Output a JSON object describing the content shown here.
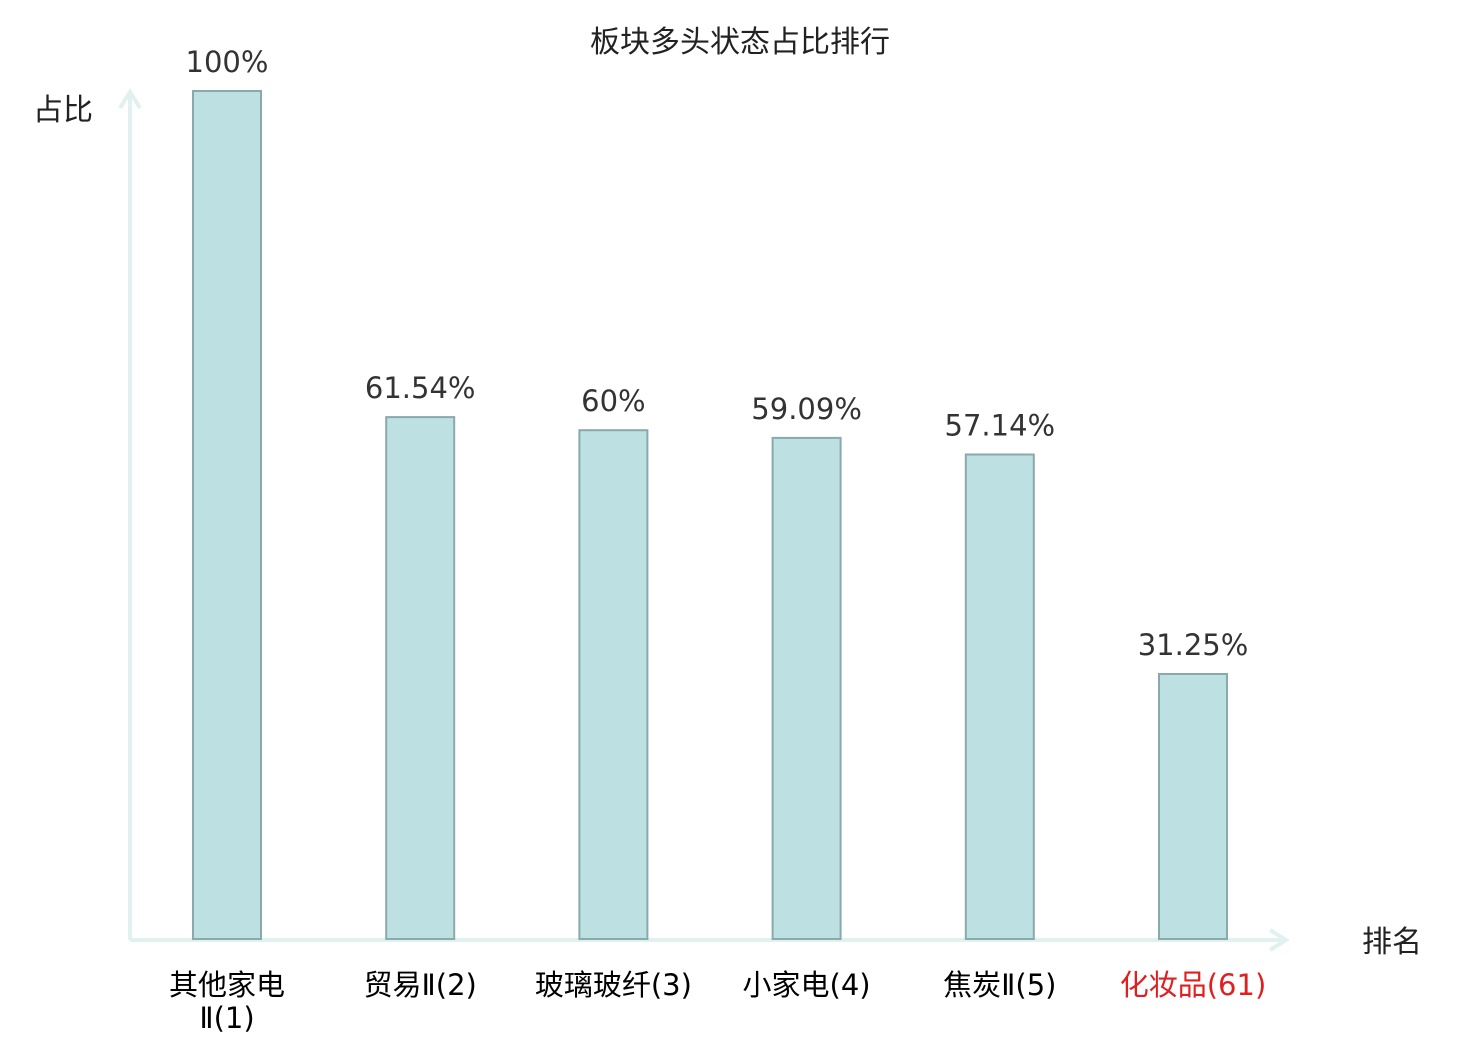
{
  "chart_data": {
    "type": "bar",
    "title": "板块多头状态占比排行",
    "ylabel": "占比",
    "xlabel": "排名",
    "ylim": [
      0,
      100
    ],
    "grid": false,
    "categories": [
      {
        "name": "其他家电Ⅱ",
        "rank": "(1)",
        "lines": [
          "其他家电",
          "Ⅱ(1)"
        ],
        "highlight": false
      },
      {
        "name": "贸易Ⅱ",
        "rank": "(2)",
        "lines": [
          "贸易Ⅱ(2)"
        ],
        "highlight": false
      },
      {
        "name": "玻璃玻纤",
        "rank": "(3)",
        "lines": [
          "玻璃玻纤(3)"
        ],
        "highlight": false
      },
      {
        "name": "小家电",
        "rank": "(4)",
        "lines": [
          "小家电(4)"
        ],
        "highlight": false
      },
      {
        "name": "焦炭Ⅱ",
        "rank": "(5)",
        "lines": [
          "焦炭Ⅱ(5)"
        ],
        "highlight": false
      },
      {
        "name": "化妆品",
        "rank": "(61)",
        "lines": [
          "化妆品(61)"
        ],
        "highlight": true
      }
    ],
    "values": [
      100,
      61.54,
      60,
      59.09,
      57.14,
      31.25
    ],
    "value_labels": [
      "100%",
      "61.54%",
      "60%",
      "59.09%",
      "57.14%",
      "31.25%"
    ],
    "colors": {
      "bar_fill": "#bde0e3",
      "bar_stroke": "#8aa9ab",
      "axis": "#e0f1ef",
      "highlight_text": "#e02020"
    }
  }
}
